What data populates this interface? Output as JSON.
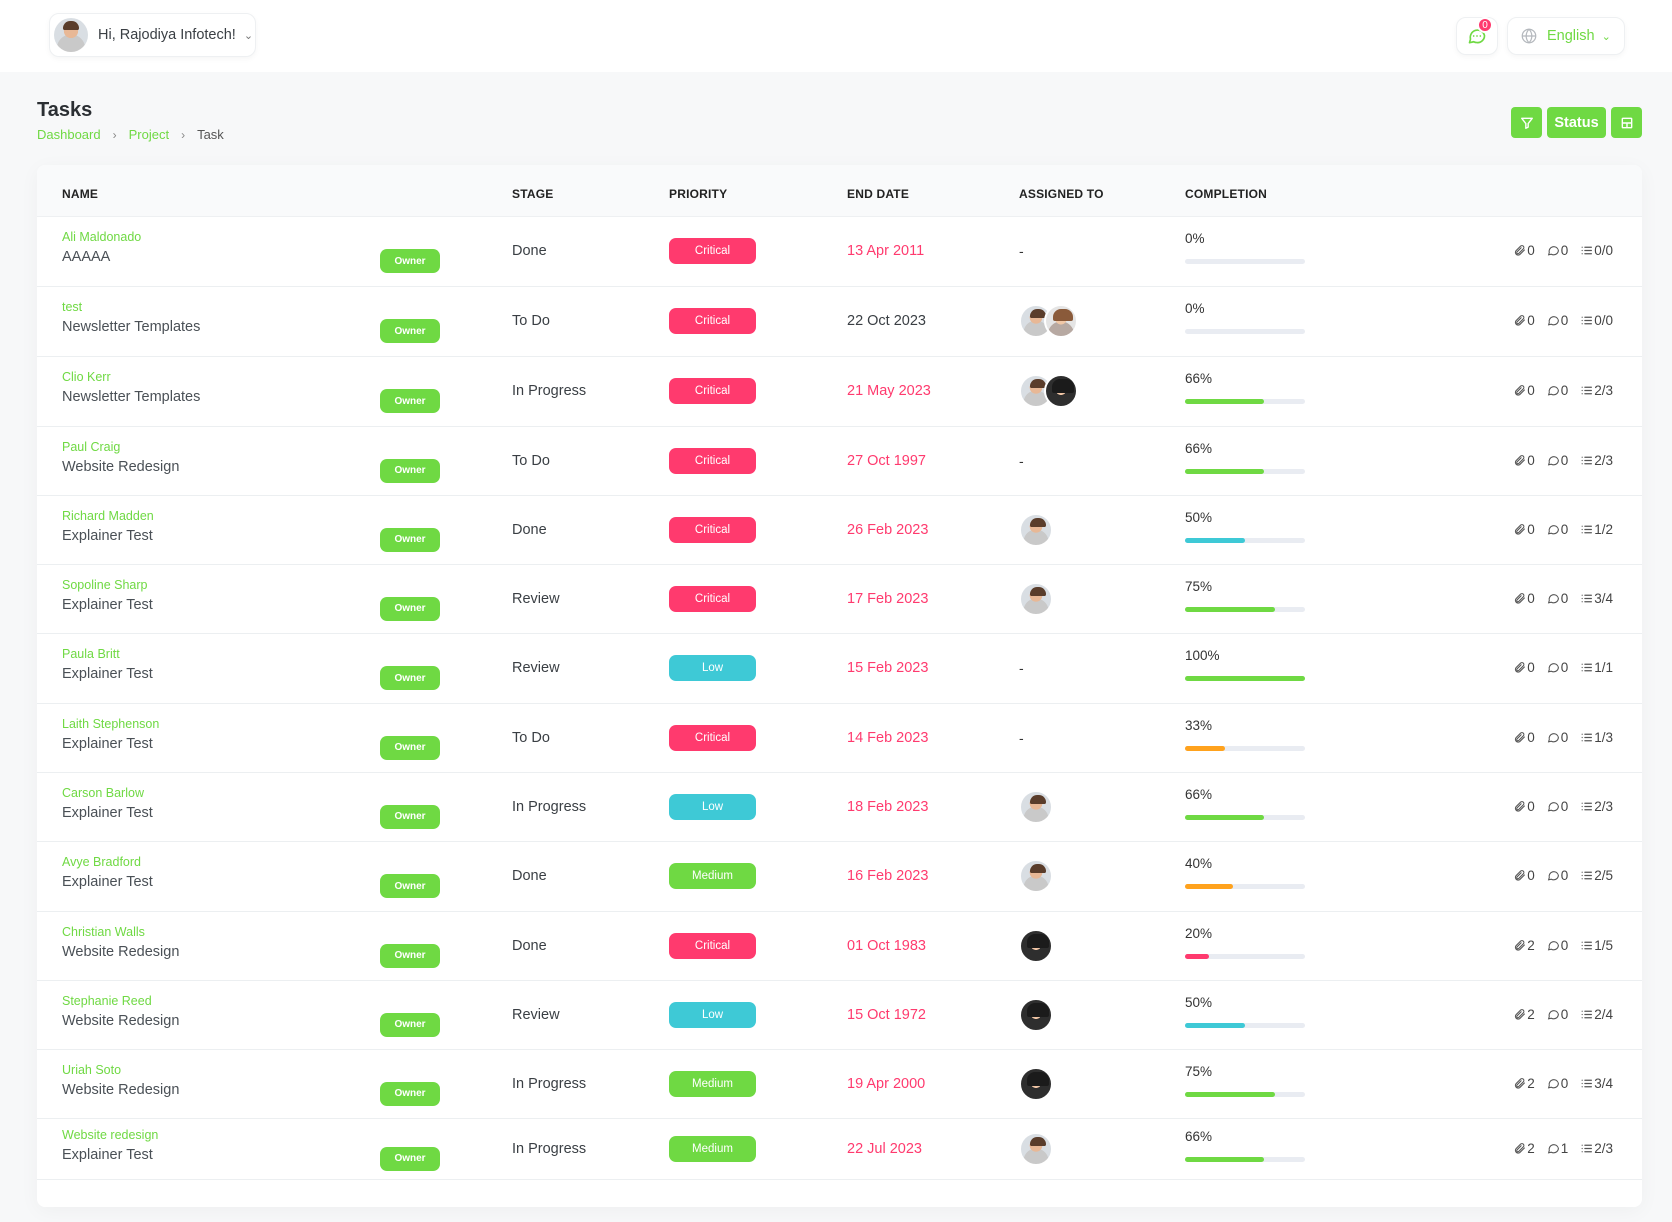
{
  "header": {
    "greeting": "Hi, Rajodiya Infotech!",
    "notification_count": "0",
    "language": "English"
  },
  "page": {
    "title": "Tasks",
    "breadcrumb": [
      "Dashboard",
      "Project",
      "Task"
    ],
    "status_button": "Status"
  },
  "colors": {
    "accent": "#6fd943",
    "critical": "#ff3a6e",
    "low": "#3ec9d6",
    "medium": "#6fd943",
    "progress_green": "#6fd943",
    "progress_cyan": "#3ec9d6",
    "progress_orange": "#ffa21d",
    "progress_red": "#ff3a6e"
  },
  "table": {
    "columns": [
      "NAME",
      "STAGE",
      "PRIORITY",
      "END DATE",
      "ASSIGNED TO",
      "COMPLETION"
    ],
    "owner_label": "Owner",
    "rows": [
      {
        "task": "Ali Maldonado",
        "project": "AAAAA",
        "stage": "Done",
        "priority": "Critical",
        "end_date": "13 Apr 2011",
        "overdue": true,
        "assignees": [],
        "completion": "0%",
        "progress": 0,
        "bar": "green",
        "attachments": "0",
        "comments": "0",
        "checklist": "0/0"
      },
      {
        "task": "test",
        "project": "Newsletter Templates",
        "stage": "To Do",
        "priority": "Critical",
        "end_date": "22 Oct 2023",
        "overdue": false,
        "assignees": [
          "male",
          "female"
        ],
        "completion": "0%",
        "progress": 0,
        "bar": "green",
        "attachments": "0",
        "comments": "0",
        "checklist": "0/0"
      },
      {
        "task": "Clio Kerr",
        "project": "Newsletter Templates",
        "stage": "In Progress",
        "priority": "Critical",
        "end_date": "21 May 2023",
        "overdue": true,
        "assignees": [
          "male",
          "dark"
        ],
        "completion": "66%",
        "progress": 66,
        "bar": "green",
        "attachments": "0",
        "comments": "0",
        "checklist": "2/3"
      },
      {
        "task": "Paul Craig",
        "project": "Website Redesign",
        "stage": "To Do",
        "priority": "Critical",
        "end_date": "27 Oct 1997",
        "overdue": true,
        "assignees": [],
        "completion": "66%",
        "progress": 66,
        "bar": "green",
        "attachments": "0",
        "comments": "0",
        "checklist": "2/3"
      },
      {
        "task": "Richard Madden",
        "project": "Explainer Test",
        "stage": "Done",
        "priority": "Critical",
        "end_date": "26 Feb 2023",
        "overdue": true,
        "assignees": [
          "male"
        ],
        "completion": "50%",
        "progress": 50,
        "bar": "cyan",
        "attachments": "0",
        "comments": "0",
        "checklist": "1/2"
      },
      {
        "task": "Sopoline Sharp",
        "project": "Explainer Test",
        "stage": "Review",
        "priority": "Critical",
        "end_date": "17 Feb 2023",
        "overdue": true,
        "assignees": [
          "male"
        ],
        "completion": "75%",
        "progress": 75,
        "bar": "green",
        "attachments": "0",
        "comments": "0",
        "checklist": "3/4"
      },
      {
        "task": "Paula Britt",
        "project": "Explainer Test",
        "stage": "Review",
        "priority": "Low",
        "end_date": "15 Feb 2023",
        "overdue": true,
        "assignees": [],
        "completion": "100%",
        "progress": 100,
        "bar": "green",
        "attachments": "0",
        "comments": "0",
        "checklist": "1/1"
      },
      {
        "task": "Laith Stephenson",
        "project": "Explainer Test",
        "stage": "To Do",
        "priority": "Critical",
        "end_date": "14 Feb 2023",
        "overdue": true,
        "assignees": [],
        "completion": "33%",
        "progress": 33,
        "bar": "orange",
        "attachments": "0",
        "comments": "0",
        "checklist": "1/3"
      },
      {
        "task": "Carson Barlow",
        "project": "Explainer Test",
        "stage": "In Progress",
        "priority": "Low",
        "end_date": "18 Feb 2023",
        "overdue": true,
        "assignees": [
          "male"
        ],
        "completion": "66%",
        "progress": 66,
        "bar": "green",
        "attachments": "0",
        "comments": "0",
        "checklist": "2/3"
      },
      {
        "task": "Avye Bradford",
        "project": "Explainer Test",
        "stage": "Done",
        "priority": "Medium",
        "end_date": "16 Feb 2023",
        "overdue": true,
        "assignees": [
          "male"
        ],
        "completion": "40%",
        "progress": 40,
        "bar": "orange",
        "attachments": "0",
        "comments": "0",
        "checklist": "2/5"
      },
      {
        "task": "Christian Walls",
        "project": "Website Redesign",
        "stage": "Done",
        "priority": "Critical",
        "end_date": "01 Oct 1983",
        "overdue": true,
        "assignees": [
          "dark"
        ],
        "completion": "20%",
        "progress": 20,
        "bar": "red",
        "attachments": "2",
        "comments": "0",
        "checklist": "1/5"
      },
      {
        "task": "Stephanie Reed",
        "project": "Website Redesign",
        "stage": "Review",
        "priority": "Low",
        "end_date": "15 Oct 1972",
        "overdue": true,
        "assignees": [
          "dark"
        ],
        "completion": "50%",
        "progress": 50,
        "bar": "cyan",
        "attachments": "2",
        "comments": "0",
        "checklist": "2/4"
      },
      {
        "task": "Uriah Soto",
        "project": "Website Redesign",
        "stage": "In Progress",
        "priority": "Medium",
        "end_date": "19 Apr 2000",
        "overdue": true,
        "assignees": [
          "dark"
        ],
        "completion": "75%",
        "progress": 75,
        "bar": "green",
        "attachments": "2",
        "comments": "0",
        "checklist": "3/4"
      },
      {
        "task": "Website redesign",
        "project": "Explainer Test",
        "stage": "In Progress",
        "priority": "Medium",
        "end_date": "22 Jul 2023",
        "overdue": true,
        "assignees": [
          "male"
        ],
        "completion": "66%",
        "progress": 66,
        "bar": "green",
        "attachments": "2",
        "comments": "1",
        "checklist": "2/3"
      }
    ]
  }
}
